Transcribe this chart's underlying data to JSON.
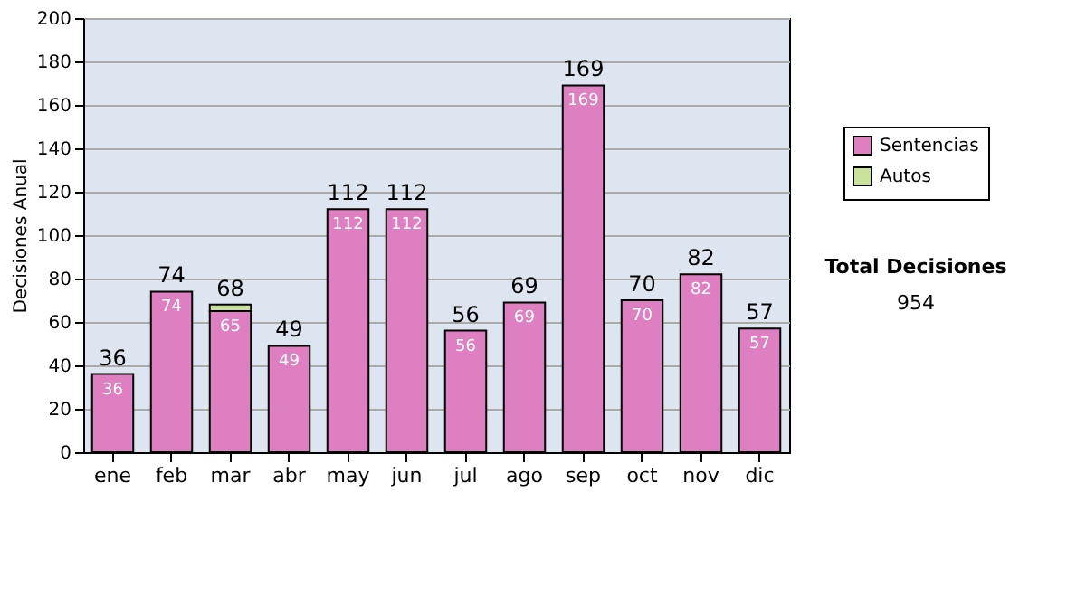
{
  "chart_data": {
    "type": "bar",
    "stacked": true,
    "ylabel": "Decisiones Anual",
    "categories": [
      "ene",
      "feb",
      "mar",
      "abr",
      "may",
      "jun",
      "jul",
      "ago",
      "sep",
      "oct",
      "nov",
      "dic"
    ],
    "series": [
      {
        "name": "Sentencias",
        "color": "#dd7fc1",
        "values": [
          36,
          74,
          65,
          49,
          112,
          112,
          56,
          69,
          169,
          70,
          82,
          57
        ],
        "value_labels": [
          "36",
          "74",
          "65",
          "49",
          "112",
          "112",
          "56",
          "69",
          "169",
          "70",
          "82",
          "57"
        ]
      },
      {
        "name": "Autos",
        "color": "#c8e29c",
        "values": [
          null,
          null,
          3,
          null,
          null,
          null,
          null,
          null,
          null,
          null,
          null,
          null
        ]
      }
    ],
    "totals": [
      "36",
      "74",
      "68",
      "49",
      "112",
      "112",
      "56",
      "69",
      "169",
      "70",
      "82",
      "57"
    ],
    "ylim": [
      0,
      200
    ],
    "yticks": [
      0,
      20,
      40,
      60,
      80,
      100,
      120,
      140,
      160,
      180,
      200
    ],
    "grid": "y",
    "legend": "right",
    "annotations": [
      "Total Decisiones",
      "954"
    ]
  }
}
